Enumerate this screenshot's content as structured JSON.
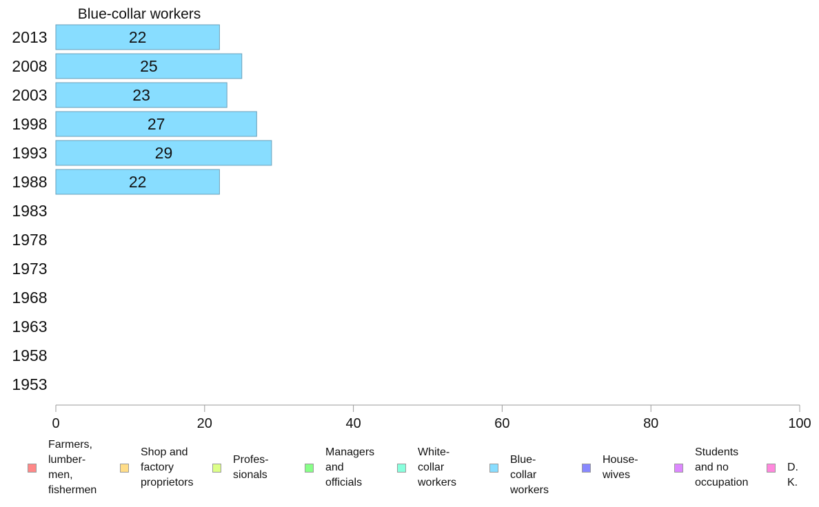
{
  "chart_data": {
    "type": "bar",
    "orientation": "horizontal",
    "title": "Blue-collar workers",
    "categories": [
      "2013",
      "2008",
      "2003",
      "1998",
      "1993",
      "1988",
      "1983",
      "1978",
      "1973",
      "1968",
      "1963",
      "1958",
      "1953"
    ],
    "series": [
      {
        "name": "Blue-collar workers",
        "color": "#88ddff",
        "values": [
          22,
          25,
          23,
          27,
          29,
          22,
          null,
          null,
          null,
          null,
          null,
          null,
          null
        ]
      }
    ],
    "value_labels": [
      "22",
      "25",
      "23",
      "27",
      "29",
      "22"
    ],
    "xlim": [
      0,
      100
    ],
    "xticks": [
      "0",
      "20",
      "40",
      "60",
      "80",
      "100"
    ],
    "legend_position": "bottom"
  },
  "legend": [
    {
      "label": "Farmers,\nlumber-\nmen,\nfishermen",
      "color": "#ff8888"
    },
    {
      "label": "Shop and\nfactory\nproprietors",
      "color": "#ffdd88"
    },
    {
      "label": "Profes-\nsionals",
      "color": "#ddff88"
    },
    {
      "label": "Managers\nand\nofficials",
      "color": "#88ff88"
    },
    {
      "label": "White-\ncollar\nworkers",
      "color": "#88ffdd"
    },
    {
      "label": "Blue-collar\nworkers",
      "color": "#88ddff"
    },
    {
      "label": "House-\nwives",
      "color": "#8888ff"
    },
    {
      "label": "Students\nand no\noccupation",
      "color": "#dd88ff"
    },
    {
      "label": "D. K.",
      "color": "#ff88dd"
    }
  ]
}
